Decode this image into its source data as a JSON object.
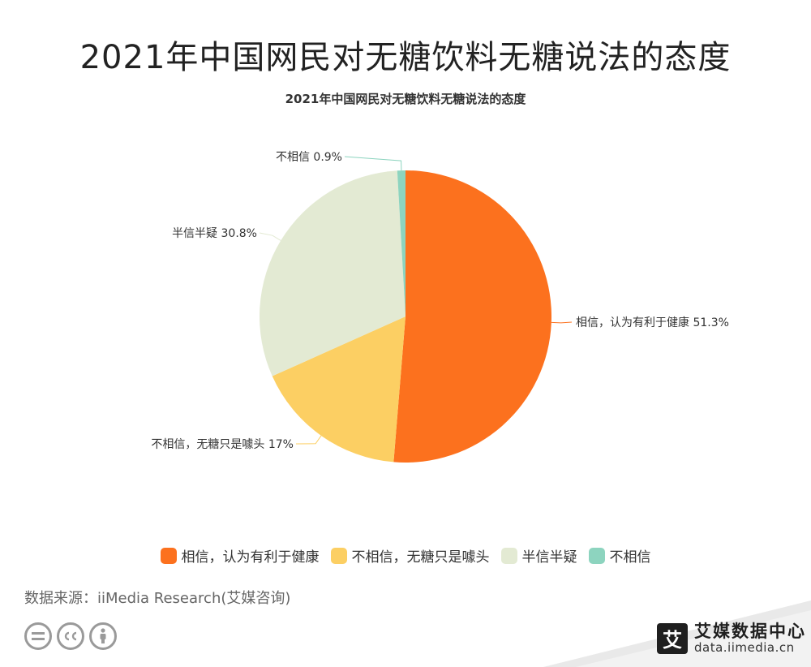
{
  "header": {
    "main_title": "2021年中国网民对无糖饮料无糖说法的态度",
    "chart_title": "2021年中国网民对无糖饮料无糖说法的态度"
  },
  "chart_data": {
    "type": "pie",
    "title": "2021年中国网民对无糖饮料无糖说法的态度",
    "slices": [
      {
        "label": "相信，认为有利于健康",
        "value": 51.3,
        "value_label": "51.3%",
        "color": "#FC711E"
      },
      {
        "label": "不相信，无糖只是噱头",
        "value": 17,
        "value_label": "17%",
        "color": "#FCCF63"
      },
      {
        "label": "半信半疑",
        "value": 30.8,
        "value_label": "30.8%",
        "color": "#E3EAD3"
      },
      {
        "label": "不相信",
        "value": 0.9,
        "value_label": "0.9%",
        "color": "#8DD4BF"
      }
    ],
    "legend_position": "bottom"
  },
  "legend": {
    "items": [
      "相信，认为有利于健康",
      "不相信，无糖只是噱头",
      "半信半疑",
      "不相信"
    ]
  },
  "footer": {
    "source": "数据来源：iiMedia Research(艾媒咨询)",
    "brand_name": "艾媒数据中心",
    "brand_url": "data.iimedia.cn",
    "brand_logo_char": "艾"
  },
  "icons": [
    "cc-equal-icon",
    "cc-icon",
    "cc-person-icon"
  ]
}
